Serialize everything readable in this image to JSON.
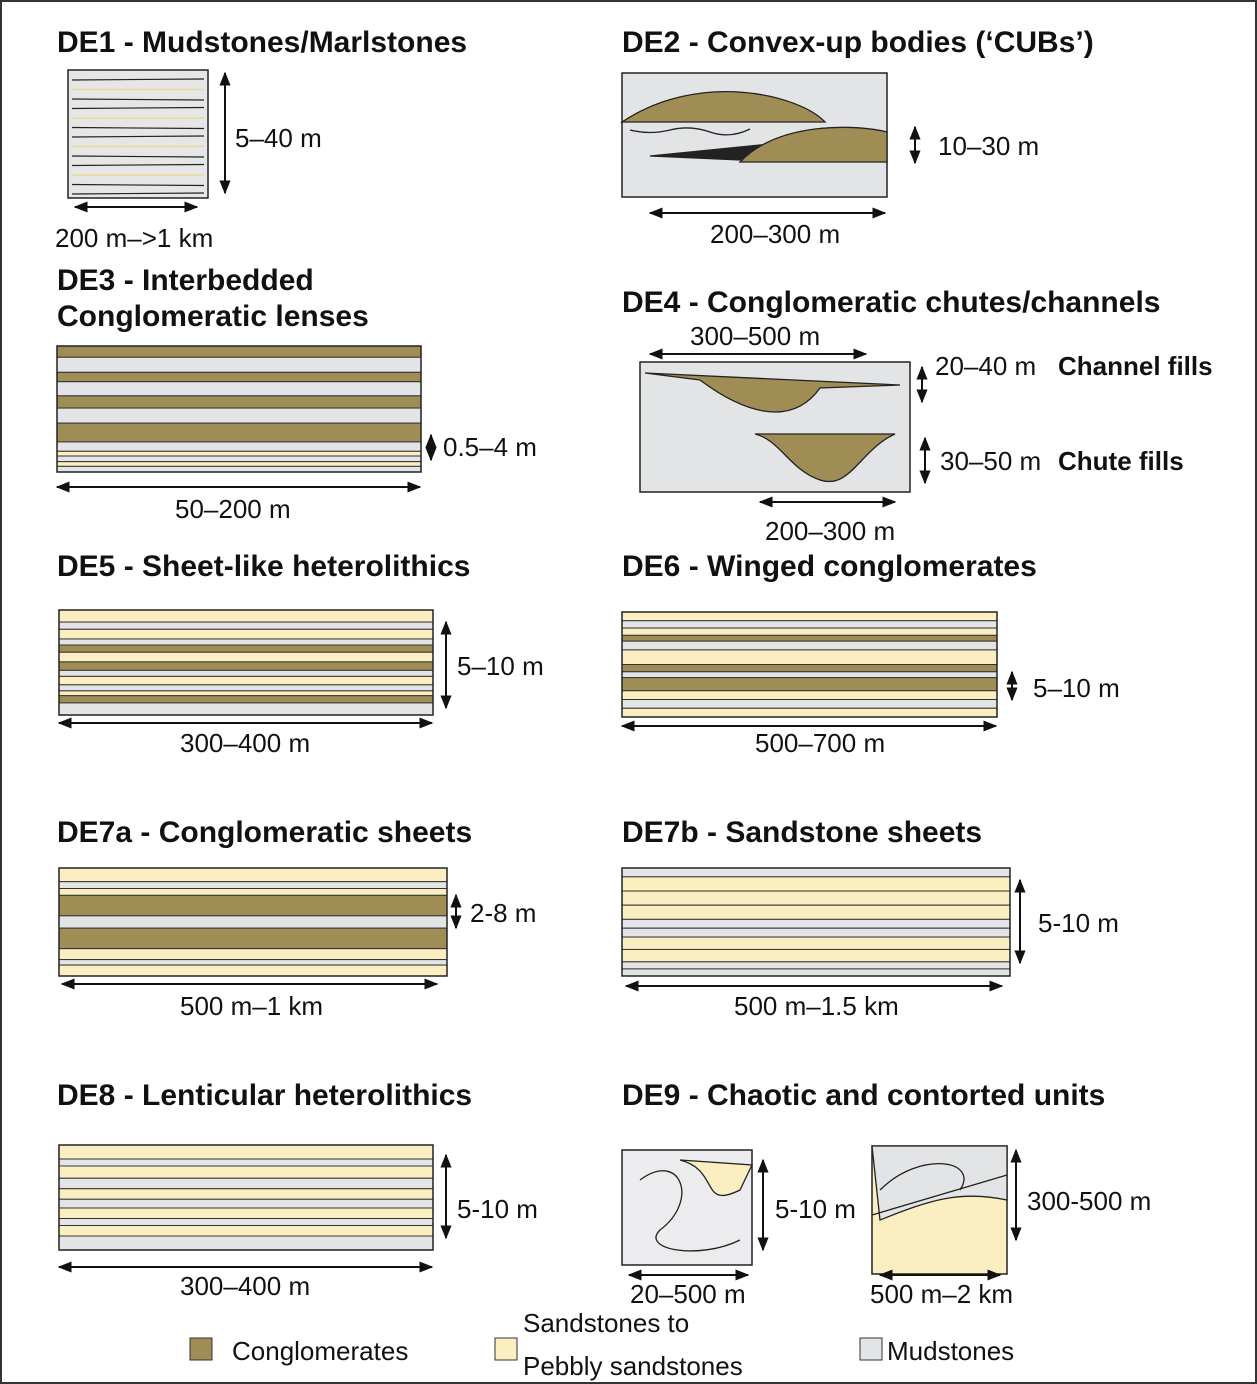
{
  "panels": [
    {
      "title": [
        "DE1 - Mudstones/Marlstones"
      ],
      "height": "5–40 m",
      "width": "200 m–>1 km"
    },
    {
      "title": [
        "DE2 - Convex-up bodies (‘CUBs’)"
      ],
      "height": "10–30 m",
      "width": "200–300 m"
    },
    {
      "title": [
        "DE3 - Interbedded",
        "Conglomeratic lenses"
      ],
      "height": "0.5–4 m",
      "width": "50–200 m"
    },
    {
      "title": [
        "DE4 - Conglomeratic chutes/channels"
      ],
      "width_top": "300–500 m",
      "height_channel": "20–40 m",
      "channel": "Channel fills",
      "height_chute": "30–50 m",
      "chute": "Chute fills",
      "width_bottom": "200–300 m"
    },
    {
      "title": [
        "DE5 - Sheet-like heterolithics"
      ],
      "height": "5–10 m",
      "width": "300–400 m"
    },
    {
      "title": [
        "DE6 - Winged conglomerates"
      ],
      "height": "5–10 m",
      "width": "500–700 m"
    },
    {
      "title": [
        "DE7a - Conglomeratic sheets"
      ],
      "height": "2-8 m",
      "width": "500 m–1 km"
    },
    {
      "title": [
        "DE7b - Sandstone sheets"
      ],
      "height": "5-10 m",
      "width": "500 m–1.5 km"
    },
    {
      "title": [
        "DE8 - Lenticular heterolithics"
      ],
      "height": "5-10 m",
      "width": "300–400 m"
    },
    {
      "title": [
        "DE9 - Chaotic and contorted units"
      ],
      "height_left": "5-10 m",
      "width_left": "20–500 m",
      "height_right": "300-500 m",
      "width_right": "500 m–2 km"
    }
  ],
  "legend": [
    {
      "label": [
        "Conglomerates"
      ]
    },
    {
      "label": [
        "Sandstones to",
        "Pebbly sandstones"
      ]
    },
    {
      "label": [
        "Mudstones"
      ]
    }
  ]
}
